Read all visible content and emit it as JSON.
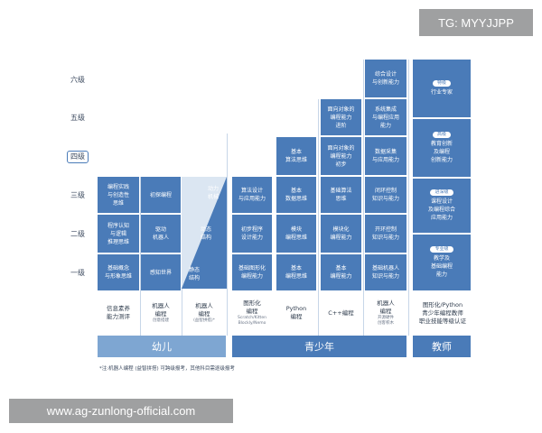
{
  "watermark_top": "TG: MYYJJPP",
  "watermark_bottom": "www.ag-zunlong-official.com",
  "levels": [
    "六级",
    "五级",
    "四级",
    "三级",
    "二级",
    "一级"
  ],
  "columns": [
    {
      "label": "信息素养\n能力测评",
      "sub": "",
      "cells": [
        "编程实践\n与创造性\n思维",
        "程序认知\n与逻辑\n推理思维",
        "基础概念\n与形象思维"
      ]
    },
    {
      "label": "机器人\n编程",
      "sub": "创意搭建",
      "cells": [
        "初探编程",
        "驱动\n机器人",
        "感知世界"
      ]
    },
    {
      "label": "机器人\n编程",
      "sub": "(益智拼搭)*",
      "cells": [
        "动力\n机械",
        "动态\n结构",
        "静态\n结构"
      ]
    },
    {
      "label": "图形化\n编程",
      "sub": "Scratch/Kitten\nBlockly/Nemo",
      "cells": [
        "算法设计\n与应用能力",
        "初步程序\n设计能力",
        "基础图形化\n编程能力"
      ]
    },
    {
      "label": "Python\n编程",
      "sub": "",
      "cells": [
        "基本\n算法思维",
        "基本\n数据思维",
        "模块\n编程思维",
        "基本\n编程思维"
      ]
    },
    {
      "label": "C++编程",
      "sub": "",
      "cells": [
        "面向对象的\n编程能力\n进阶",
        "面向对象的\n编程能力\n初步",
        "基础算法\n思维",
        "模块化\n编程能力",
        "基本\n编程能力"
      ]
    },
    {
      "label": "机器人\n编程",
      "sub": "开源硬件\n创客积木",
      "cells": [
        "综合设计\n与创新能力",
        "系统集成\n与编程应用\n能力",
        "数据采集\n与应用能力",
        "闭环控制\n知识与能力",
        "开环控制\n知识与能力",
        "基础机器人\n知识与能力"
      ]
    },
    {
      "label": "图形化/Python\n青少年编程教师\n职业技能等级认证",
      "sub": "",
      "badges": [
        "特级",
        "高级",
        "进深级",
        "专业级"
      ],
      "cells": [
        "行业专家",
        "教育创新\n及编程\n创新能力",
        "课程设计\n及编程综合\n应用能力",
        "教学及\n基础编程\n能力"
      ]
    }
  ],
  "groups": [
    "幼儿",
    "青少年",
    "教师"
  ],
  "note": "*注:机器人编程 (益智拼搭) 可跨级报考，其他科目需逐级报考"
}
